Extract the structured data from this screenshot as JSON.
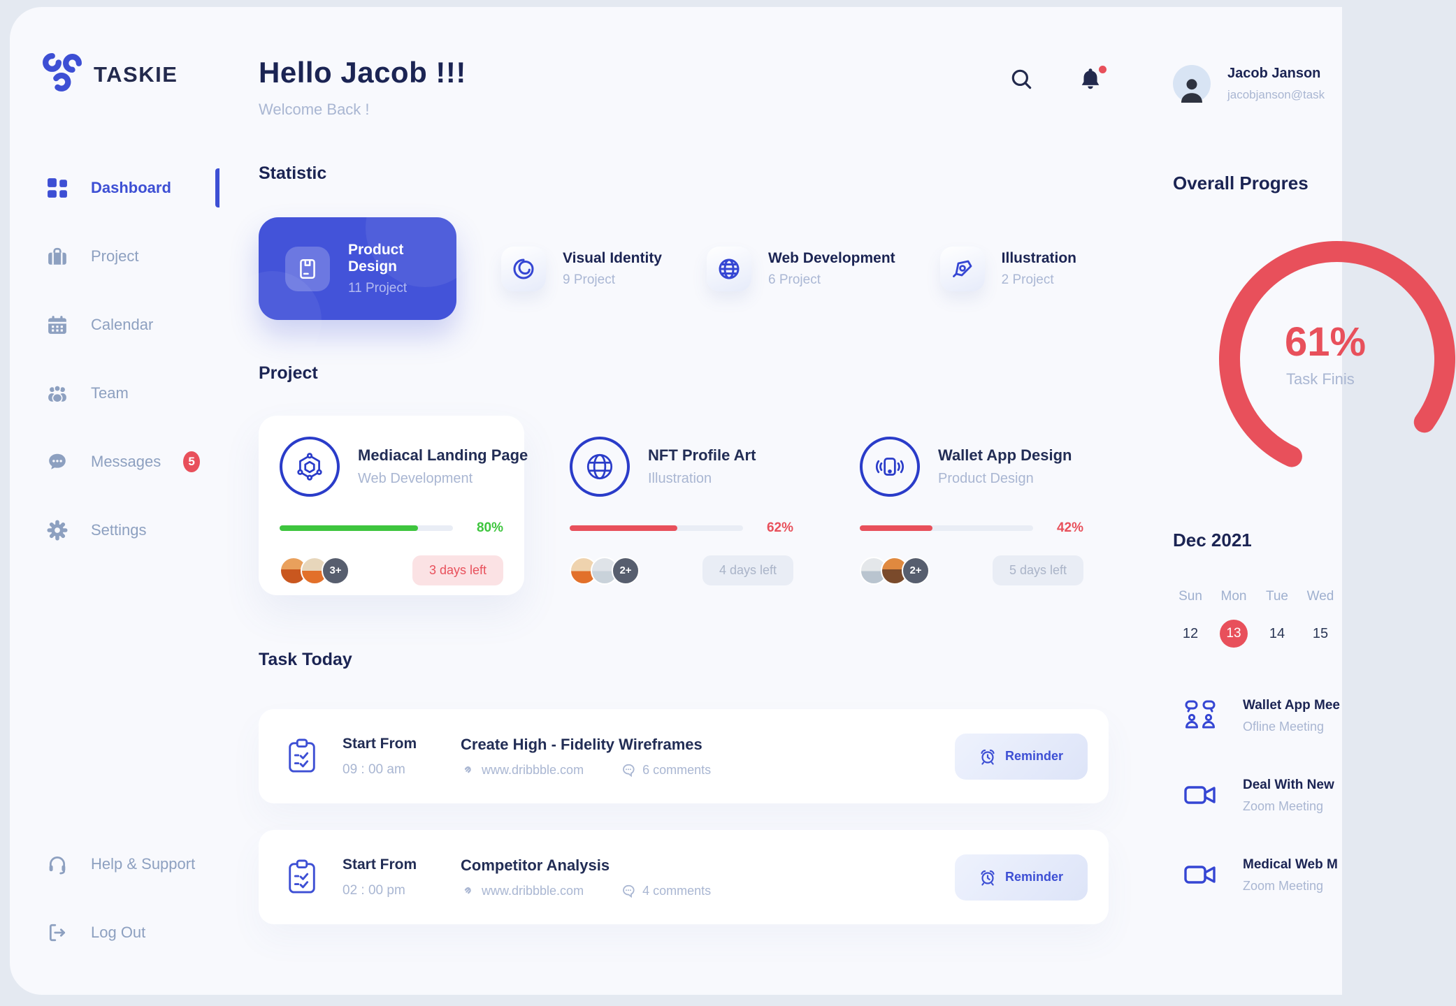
{
  "app": {
    "title": "TASKIE"
  },
  "colors": {
    "primary": "#3D4FD4",
    "card_blue": "#4353D9",
    "navy": "#1B2453",
    "muted": "#A9B6D2",
    "red": "#E8505B",
    "green": "#3EC53E"
  },
  "sidebar": {
    "logo_text": "TASKIE",
    "items": [
      {
        "label": "Dashboard",
        "icon": "grid-icon",
        "active": true
      },
      {
        "label": "Project",
        "icon": "briefcase-icon"
      },
      {
        "label": "Calendar",
        "icon": "calendar-icon"
      },
      {
        "label": "Team",
        "icon": "team-icon"
      },
      {
        "label": "Messages",
        "icon": "chat-icon",
        "badge": "5"
      },
      {
        "label": "Settings",
        "icon": "gear-icon"
      }
    ],
    "footer_items": [
      {
        "label": "Help & Support",
        "icon": "headset-icon"
      },
      {
        "label": "Log Out",
        "icon": "logout-icon"
      }
    ]
  },
  "header": {
    "greeting": "Hello Jacob !!!",
    "subtitle": "Welcome Back !"
  },
  "statistic": {
    "title": "Statistic",
    "cards": [
      {
        "title": "Product Design",
        "count": "11 Project",
        "icon": "package-icon",
        "highlight": true
      },
      {
        "title": "Visual Identity",
        "count": "9 Project",
        "icon": "swirl-icon"
      },
      {
        "title": "Web Development",
        "count": "6 Project",
        "icon": "globe-icon"
      },
      {
        "title": "Illustration",
        "count": "2 Project",
        "icon": "pen-tool-icon"
      }
    ]
  },
  "projects": {
    "title": "Project",
    "cards": [
      {
        "title": "Mediacal Landing Page",
        "category": "Web Development",
        "icon": "hexagon-network-icon",
        "progress": 80,
        "progress_label": "80%",
        "progress_color": "#3EC53E",
        "extra_members": "3+",
        "days_left": "3 days left"
      },
      {
        "title": "NFT Profile Art",
        "category": "Illustration",
        "icon": "globe-outline-icon",
        "progress": 62,
        "progress_label": "62%",
        "progress_color": "#E8505B",
        "extra_members": "2+",
        "days_left": "4 days left"
      },
      {
        "title": "Wallet App Design",
        "category": "Product Design",
        "icon": "phone-waves-icon",
        "progress": 42,
        "progress_label": "42%",
        "progress_color": "#E8505B",
        "extra_members": "2+",
        "days_left": "5 days left"
      }
    ]
  },
  "tasks": {
    "title": "Task Today",
    "items": [
      {
        "start_label": "Start From",
        "time": "09 : 00 am",
        "title": "Create High - Fidelity Wireframes",
        "link": "www.dribbble.com",
        "comments": "6 comments",
        "action_label": "Reminder"
      },
      {
        "start_label": "Start From",
        "time": "02 : 00 pm",
        "title": "Competitor Analysis",
        "link": "www.dribbble.com",
        "comments": "4 comments",
        "action_label": "Reminder"
      }
    ]
  },
  "profile": {
    "name": "Jacob Janson",
    "email": "jacobjanson@task"
  },
  "overall_progress": {
    "title": "Overall Progres",
    "percent_label": "61%",
    "caption": "Task Finis",
    "value": 61
  },
  "calendar": {
    "month": "Dec 2021",
    "weekdays": [
      "Sun",
      "Mon",
      "Tue",
      "Wed"
    ],
    "dates": [
      {
        "day": "12",
        "active": false
      },
      {
        "day": "13",
        "active": true
      },
      {
        "day": "14",
        "active": false
      },
      {
        "day": "15",
        "active": false
      }
    ]
  },
  "meetings": [
    {
      "title": "Wallet App Mee",
      "subtitle": "Ofline Meeting",
      "icon": "people-meeting-icon"
    },
    {
      "title": "Deal With New",
      "subtitle": "Zoom Meeting",
      "icon": "video-camera-icon"
    },
    {
      "title": "Medical Web M",
      "subtitle": "Zoom Meeting",
      "icon": "video-camera-icon"
    }
  ]
}
